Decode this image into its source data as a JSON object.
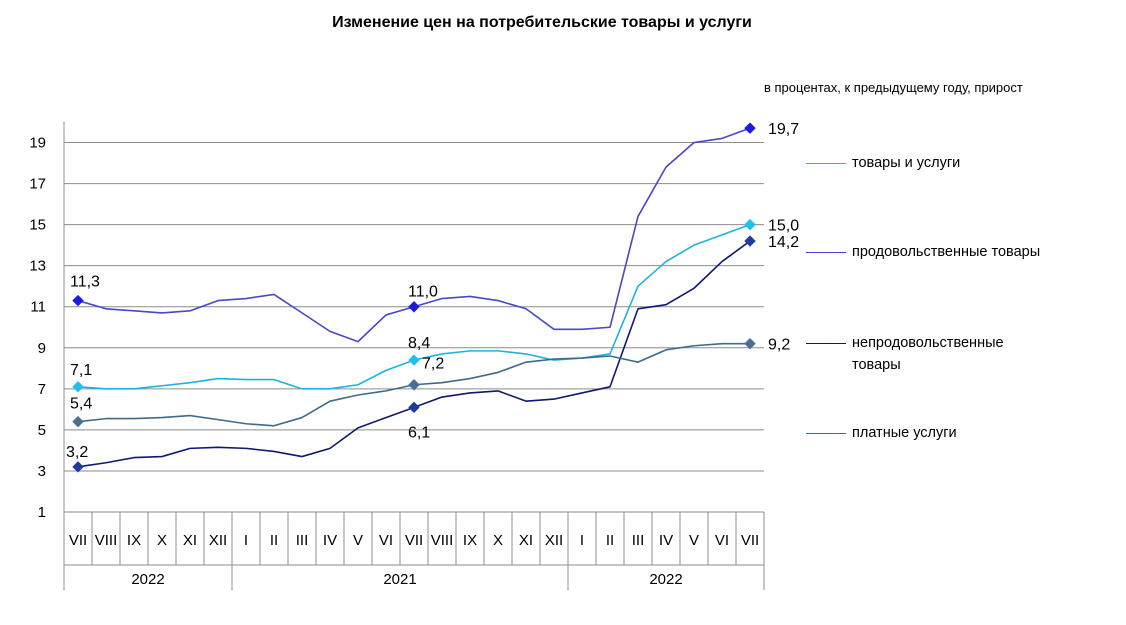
{
  "chart_data": {
    "type": "line",
    "title": "Изменение цен на потребительские  товары  и услуги",
    "subtitle": "в процентах, к предыдущему году, прирост",
    "x_months": [
      "VII",
      "VIII",
      "IX",
      "X",
      "XI",
      "XII",
      "I",
      "II",
      "III",
      "IV",
      "V",
      "VI",
      "VII",
      "VIII",
      "IX",
      "X",
      "XI",
      "XII",
      "I",
      "II",
      "III",
      "IV",
      "V",
      "VI",
      "VII"
    ],
    "x_years": [
      {
        "label": "2022",
        "start": 0,
        "end": 5
      },
      {
        "label": "2021",
        "start": 6,
        "end": 17
      },
      {
        "label": "2022",
        "start": 18,
        "end": 24
      }
    ],
    "y_ticks": [
      1,
      3,
      5,
      7,
      9,
      11,
      13,
      15,
      17,
      19
    ],
    "ylim": [
      1,
      20
    ],
    "grid": true,
    "legend_position": "right",
    "series": [
      {
        "name": "товары и  услуги",
        "color": "#1bb4e0",
        "marker_color": "#1ec0ee",
        "values": [
          7.1,
          7.0,
          7.0,
          7.15,
          7.3,
          7.5,
          7.45,
          7.45,
          7.0,
          7.0,
          7.2,
          7.9,
          8.4,
          8.7,
          8.85,
          8.85,
          8.7,
          8.4,
          8.5,
          8.7,
          12.0,
          13.2,
          14.0,
          14.5,
          15.0
        ],
        "labels": [
          {
            "index": 0,
            "text": "7,1"
          },
          {
            "index": 12,
            "text": "8,4"
          },
          {
            "index": 24,
            "text": "15,0"
          }
        ]
      },
      {
        "name": "продовольственные  товары",
        "color": "#4848c8",
        "marker_color": "#1a1ae0",
        "values": [
          11.3,
          10.9,
          10.8,
          10.7,
          10.8,
          11.3,
          11.4,
          11.6,
          10.7,
          9.8,
          9.3,
          10.6,
          11.0,
          11.4,
          11.5,
          11.3,
          10.9,
          9.9,
          9.9,
          10.0,
          15.4,
          17.8,
          19.0,
          19.2,
          19.7
        ],
        "labels": [
          {
            "index": 0,
            "text": "11,3"
          },
          {
            "index": 12,
            "text": "11,0"
          },
          {
            "index": 24,
            "text": "19,7"
          }
        ]
      },
      {
        "name": "непродовольственные  товары",
        "color": "#0e1a6e",
        "marker_color": "#1e3c9e",
        "values": [
          3.2,
          3.4,
          3.65,
          3.7,
          4.1,
          4.15,
          4.1,
          3.95,
          3.7,
          4.1,
          5.1,
          5.6,
          6.1,
          6.6,
          6.8,
          6.9,
          6.4,
          6.5,
          6.8,
          7.1,
          10.9,
          11.1,
          11.9,
          13.2,
          14.2
        ],
        "labels": [
          {
            "index": 0,
            "text": "3,2"
          },
          {
            "index": 12,
            "text": "6,1"
          },
          {
            "index": 24,
            "text": "14,2"
          }
        ]
      },
      {
        "name": "платные услуги",
        "color": "#3f6a8c",
        "marker_color": "#4a6e94",
        "values": [
          5.4,
          5.55,
          5.55,
          5.6,
          5.7,
          5.5,
          5.3,
          5.2,
          5.6,
          6.4,
          6.7,
          6.9,
          7.2,
          7.3,
          7.5,
          7.8,
          8.3,
          8.45,
          8.5,
          8.6,
          8.3,
          8.9,
          9.1,
          9.2,
          9.2
        ],
        "labels": [
          {
            "index": 0,
            "text": "5,4"
          },
          {
            "index": 12,
            "text": "7,2"
          },
          {
            "index": 24,
            "text": "9,2"
          }
        ]
      }
    ]
  }
}
